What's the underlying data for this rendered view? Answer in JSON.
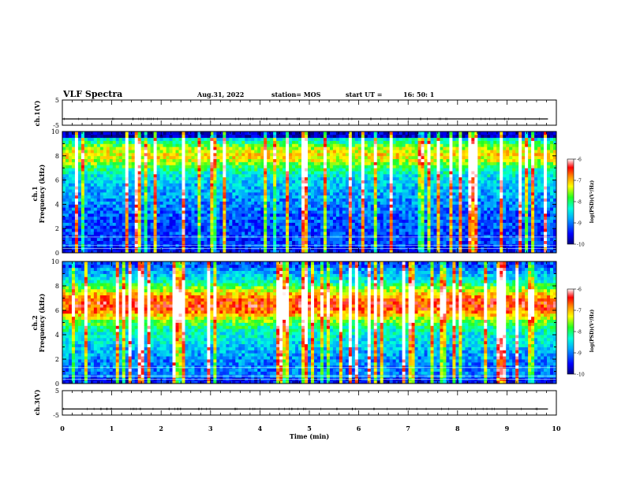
{
  "header": {
    "title": "VLF Spectra",
    "date": "Aug.31, 2022",
    "station": "station= MOS",
    "start_label": "start  UT =",
    "start_time": "16: 50: 1"
  },
  "chart_data": [
    {
      "type": "line",
      "ylabel": "ch.1(V)",
      "ylim": [
        -5,
        5
      ],
      "y_ticks": [
        "5",
        "-5"
      ],
      "xlim": [
        0,
        10
      ],
      "series": [
        {
          "values": [
            -2.5,
            -2.5
          ]
        }
      ]
    },
    {
      "type": "heatmap",
      "ylabel_lines": [
        "ch.1",
        "Frequency (kHz)"
      ],
      "ylim": [
        0,
        10
      ],
      "y_ticks": [
        "0",
        "2",
        "4",
        "6",
        "8",
        "10"
      ],
      "xlim": [
        0,
        10
      ],
      "colorbar": {
        "label": "log(PSD)(V²/Hz)",
        "ticks": [
          "-6",
          "-7",
          "-8",
          "-9",
          "-10"
        ],
        "range": [
          -10,
          -6
        ]
      }
    },
    {
      "type": "heatmap",
      "ylabel_lines": [
        "ch.2",
        "Frequency (kHz)"
      ],
      "ylim": [
        0,
        10
      ],
      "y_ticks": [
        "0",
        "2",
        "4",
        "6",
        "8",
        "10"
      ],
      "xlim": [
        0,
        10
      ],
      "colorbar": {
        "label": "log(PSD)(V²/Hz)",
        "ticks": [
          "-6",
          "-7",
          "-8",
          "-9",
          "-10"
        ],
        "range": [
          -10,
          -6
        ]
      }
    },
    {
      "type": "line",
      "ylabel": "ch.3(V)",
      "ylim": [
        -5,
        5
      ],
      "y_ticks": [
        "5",
        "-5"
      ],
      "xlim": [
        0,
        10
      ],
      "x_ticks": [
        "0",
        "1",
        "2",
        "3",
        "4",
        "5",
        "6",
        "7",
        "8",
        "9",
        "10"
      ],
      "xlabel": "Time (min)",
      "series": [
        {
          "values": [
            -2.5,
            -2.5
          ]
        }
      ]
    }
  ]
}
